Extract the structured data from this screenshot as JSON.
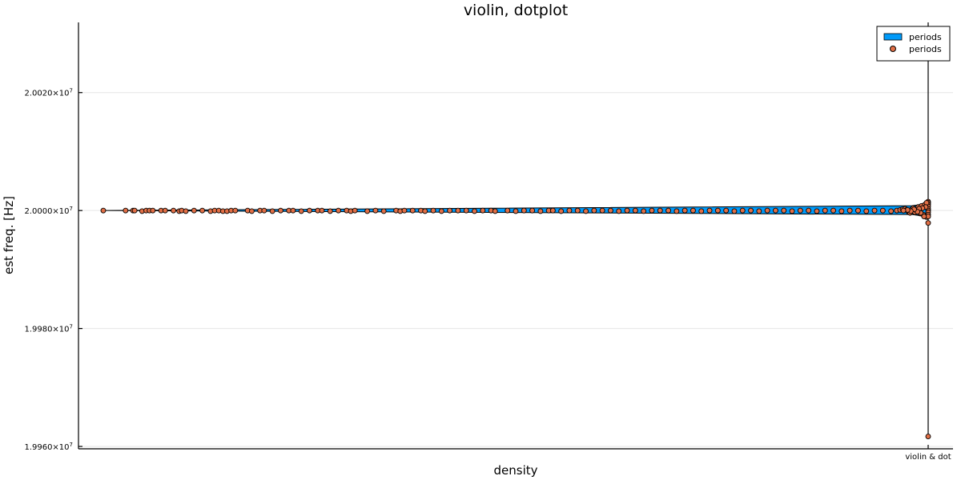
{
  "chart_data": {
    "type": "scatter",
    "title": "violin, dotplot",
    "xlabel": "density",
    "ylabel": "est freq. [Hz]",
    "x_categories": [
      "violin & dot"
    ],
    "yticks": [
      {
        "value": 19960000,
        "label_base": "1.9960×10",
        "label_exp": "7"
      },
      {
        "value": 19980000,
        "label_base": "1.9980×10",
        "label_exp": "7"
      },
      {
        "value": 20000000,
        "label_base": "2.0000×10",
        "label_exp": "7"
      },
      {
        "value": 20020000,
        "label_base": "2.0020×10",
        "label_exp": "7"
      }
    ],
    "ylim": [
      19959600,
      20031900
    ],
    "grid": true,
    "legend": {
      "placement": "top-right",
      "entries": [
        {
          "label": "periods",
          "marker": "bar",
          "color": "#009af9"
        },
        {
          "label": "periods",
          "marker": "circle",
          "color": "#e26f46"
        }
      ]
    },
    "series": [
      {
        "kind": "violin",
        "color": "#009af9",
        "outline": "#000000",
        "y_range": [
          19961700,
          20031900
        ],
        "peak_y": 20000000,
        "density_extent": 1.0
      },
      {
        "kind": "dotplot",
        "color": "#e26f46",
        "outline": "#000000",
        "points": [
          [
            0.0,
            20000000
          ],
          [
            0.027,
            20000000
          ],
          [
            0.036,
            20000000
          ],
          [
            0.038,
            20000000
          ],
          [
            0.047,
            19999900
          ],
          [
            0.052,
            20000000
          ],
          [
            0.056,
            20000000
          ],
          [
            0.06,
            20000000
          ],
          [
            0.07,
            20000000
          ],
          [
            0.075,
            20000000
          ],
          [
            0.085,
            20000000
          ],
          [
            0.092,
            19999900
          ],
          [
            0.095,
            20000000
          ],
          [
            0.1,
            19999900
          ],
          [
            0.11,
            20000000
          ],
          [
            0.12,
            20000000
          ],
          [
            0.13,
            19999900
          ],
          [
            0.135,
            20000000
          ],
          [
            0.14,
            20000000
          ],
          [
            0.145,
            19999900
          ],
          [
            0.15,
            19999900
          ],
          [
            0.155,
            20000000
          ],
          [
            0.16,
            20000000
          ],
          [
            0.175,
            20000000
          ],
          [
            0.18,
            19999900
          ],
          [
            0.19,
            20000000
          ],
          [
            0.195,
            20000000
          ],
          [
            0.205,
            19999900
          ],
          [
            0.215,
            20000000
          ],
          [
            0.225,
            20000000
          ],
          [
            0.23,
            20000000
          ],
          [
            0.24,
            19999900
          ],
          [
            0.25,
            20000000
          ],
          [
            0.26,
            20000000
          ],
          [
            0.265,
            20000000
          ],
          [
            0.275,
            19999900
          ],
          [
            0.285,
            20000000
          ],
          [
            0.295,
            20000000
          ],
          [
            0.3,
            19999900
          ],
          [
            0.305,
            20000000
          ],
          [
            0.32,
            19999900
          ],
          [
            0.33,
            20000000
          ],
          [
            0.34,
            19999900
          ],
          [
            0.355,
            20000000
          ],
          [
            0.36,
            19999900
          ],
          [
            0.365,
            20000000
          ],
          [
            0.375,
            20000000
          ],
          [
            0.385,
            20000000
          ],
          [
            0.39,
            19999900
          ],
          [
            0.4,
            20000000
          ],
          [
            0.41,
            19999900
          ],
          [
            0.42,
            20000000
          ],
          [
            0.43,
            20000000
          ],
          [
            0.44,
            20000000
          ],
          [
            0.45,
            19999900
          ],
          [
            0.46,
            20000000
          ],
          [
            0.47,
            20000000
          ],
          [
            0.475,
            19999900
          ],
          [
            0.49,
            20000000
          ],
          [
            0.5,
            19999900
          ],
          [
            0.51,
            20000000
          ],
          [
            0.52,
            20000000
          ],
          [
            0.53,
            19999900
          ],
          [
            0.54,
            20000000
          ],
          [
            0.545,
            20000000
          ],
          [
            0.555,
            19999900
          ],
          [
            0.565,
            20000000
          ],
          [
            0.575,
            20000000
          ],
          [
            0.585,
            19999900
          ],
          [
            0.595,
            20000000
          ],
          [
            0.605,
            20000000
          ],
          [
            0.615,
            20000000
          ],
          [
            0.625,
            19999900
          ],
          [
            0.635,
            20000000
          ],
          [
            0.645,
            20000000
          ],
          [
            0.655,
            19999900
          ],
          [
            0.665,
            20000000
          ],
          [
            0.675,
            20000000
          ],
          [
            0.685,
            20000000
          ],
          [
            0.695,
            19999900
          ],
          [
            0.705,
            20000000
          ],
          [
            0.715,
            20000000
          ],
          [
            0.725,
            19999900
          ],
          [
            0.735,
            20000000
          ],
          [
            0.745,
            20000000
          ],
          [
            0.755,
            20000000
          ],
          [
            0.765,
            19999900
          ],
          [
            0.775,
            20000000
          ],
          [
            0.785,
            20000000
          ],
          [
            0.795,
            19999900
          ],
          [
            0.805,
            20000000
          ],
          [
            0.815,
            20000000
          ],
          [
            0.825,
            20000000
          ],
          [
            0.835,
            19999900
          ],
          [
            0.845,
            20000000
          ],
          [
            0.855,
            20000000
          ],
          [
            0.865,
            19999900
          ],
          [
            0.875,
            20000000
          ],
          [
            0.885,
            20000000
          ],
          [
            0.895,
            19999900
          ],
          [
            0.905,
            20000000
          ],
          [
            0.915,
            20000000
          ],
          [
            0.925,
            19999900
          ],
          [
            0.935,
            20000000
          ],
          [
            0.945,
            20000000
          ],
          [
            0.955,
            19999900
          ],
          [
            0.962,
            20000000
          ],
          [
            0.966,
            20000100
          ],
          [
            0.969,
            20000200
          ],
          [
            0.972,
            20000300
          ],
          [
            0.974,
            20000100
          ],
          [
            0.976,
            19999800
          ],
          [
            0.978,
            19999600
          ],
          [
            0.98,
            20000200
          ],
          [
            0.982,
            20000400
          ],
          [
            0.984,
            19999700
          ],
          [
            0.986,
            20000000
          ],
          [
            0.988,
            20000600
          ],
          [
            0.99,
            19999500
          ],
          [
            0.992,
            20000800
          ],
          [
            0.994,
            19999300
          ],
          [
            0.996,
            20001000
          ],
          [
            0.998,
            19998900
          ],
          [
            1.0,
            20001500
          ],
          [
            1.0,
            20001300
          ],
          [
            1.0,
            20001000
          ],
          [
            1.0,
            20000700
          ],
          [
            1.0,
            20000300
          ],
          [
            1.0,
            20000000
          ],
          [
            1.0,
            19999700
          ],
          [
            1.0,
            19999300
          ],
          [
            1.0,
            19999000
          ],
          [
            1.0,
            19997900
          ],
          [
            1.0,
            19961700
          ],
          [
            0.998,
            20001300
          ],
          [
            0.997,
            20000600
          ],
          [
            0.995,
            19999000
          ],
          [
            0.993,
            20000400
          ],
          [
            0.991,
            19999600
          ],
          [
            0.989,
            20000300
          ],
          [
            0.987,
            19999800
          ],
          [
            0.983,
            20000200
          ],
          [
            0.979,
            19999900
          ],
          [
            0.975,
            20000100
          ],
          [
            0.97,
            20000000
          ]
        ]
      }
    ]
  }
}
